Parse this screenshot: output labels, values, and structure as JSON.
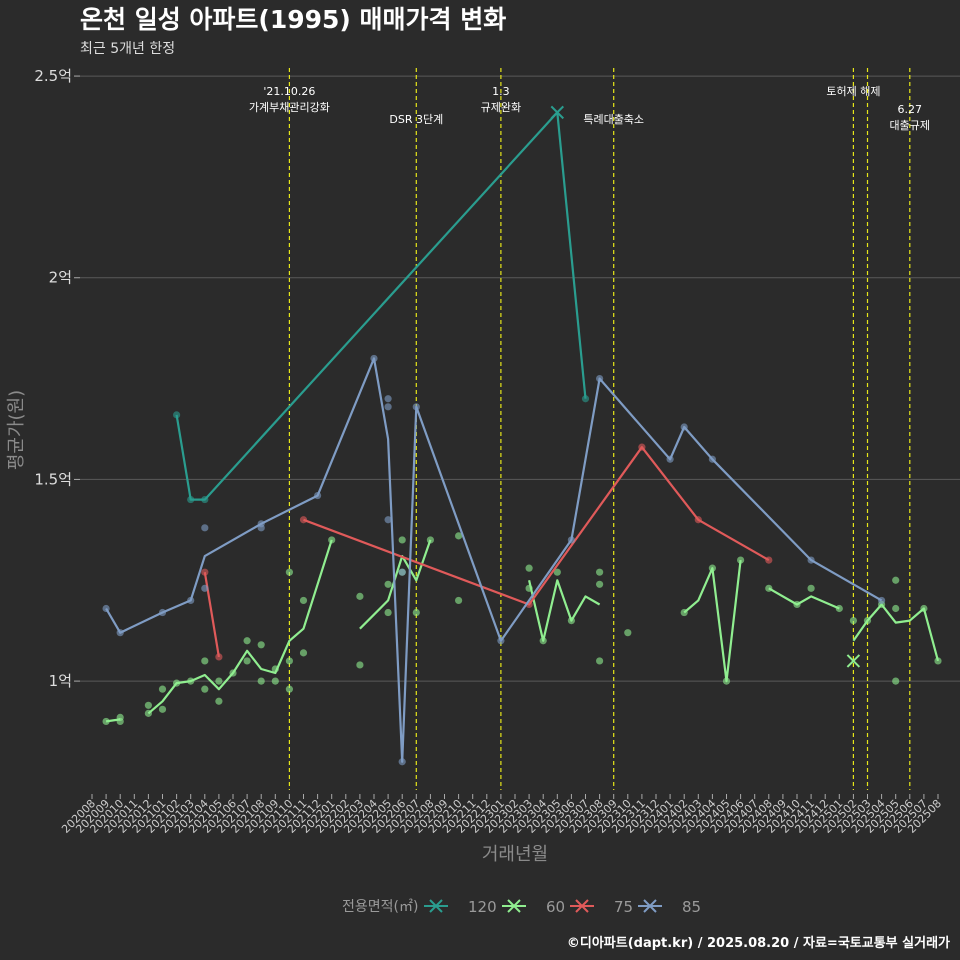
{
  "chart_data": {
    "type": "line",
    "title": "온천 일성 아파트(1995) 매매가격 변화",
    "subtitle": "최근 5개년 한정",
    "xlabel": "거래년월",
    "ylabel": "평균가(원)",
    "caption": "©디아파트(dapt.kr) / 2025.08.20 / 자료=국토교통부 실거래가",
    "x_start": "202008",
    "x_end": "202508",
    "ylim": [
      0.73,
      2.52
    ],
    "y_unit": "억",
    "yticks": [
      {
        "value": 1.0,
        "label": "1억"
      },
      {
        "value": 1.5,
        "label": "1.5억"
      },
      {
        "value": 2.0,
        "label": "2억"
      },
      {
        "value": 2.5,
        "label": "2.5억"
      }
    ],
    "xticks": [
      "202008",
      "202009",
      "202010",
      "202011",
      "202012",
      "202101",
      "202102",
      "202103",
      "202104",
      "202105",
      "202106",
      "202107",
      "202108",
      "202109",
      "202110",
      "202111",
      "202112",
      "202201",
      "202202",
      "202203",
      "202204",
      "202205",
      "202206",
      "202207",
      "202208",
      "202209",
      "202210",
      "202211",
      "202212",
      "202301",
      "202302",
      "202303",
      "202304",
      "202305",
      "202306",
      "202307",
      "202308",
      "202309",
      "202310",
      "202311",
      "202312",
      "202401",
      "202402",
      "202403",
      "202404",
      "202405",
      "202406",
      "202407",
      "202408",
      "202409",
      "202410",
      "202411",
      "202412",
      "202501",
      "202502",
      "202503",
      "202504",
      "202505",
      "202506",
      "202507",
      "202508"
    ],
    "grid": true,
    "legend": {
      "title": "전용면적(㎡)",
      "position": "bottom"
    },
    "events": [
      {
        "x": "202110",
        "lines": [
          "'21.10.26",
          "가계부채관리강화"
        ],
        "level": 1
      },
      {
        "x": "202207",
        "lines": [
          "DSR 3단계"
        ],
        "level": 2
      },
      {
        "x": "202301",
        "lines": [
          "1.3",
          "규제완화"
        ],
        "level": 1
      },
      {
        "x": "202309",
        "lines": [
          "특례대출축소"
        ],
        "level": 2
      },
      {
        "x": "202502",
        "lines": [
          "토허제 해제"
        ],
        "level": 1
      },
      {
        "x": "202503",
        "lines": [],
        "level": 1
      },
      {
        "x": "202506",
        "lines": [
          "6.27",
          "대출규제"
        ],
        "level": 3
      }
    ],
    "series": [
      {
        "name": "120",
        "color": "#2a9d8f",
        "line": [
          [
            "202102",
            1.66
          ],
          [
            "202103",
            1.45
          ],
          [
            "202104",
            1.45
          ],
          [
            "202305",
            2.41
          ],
          [
            "202307",
            1.7
          ]
        ],
        "points": [
          [
            "202102",
            1.66
          ],
          [
            "202103",
            1.45
          ],
          [
            "202104",
            1.45
          ],
          [
            "202307",
            1.7
          ]
        ],
        "crosses": [
          [
            "202305",
            2.41
          ]
        ]
      },
      {
        "name": "60",
        "color": "#90ee90",
        "line": [
          [
            "202009",
            0.9
          ],
          [
            "202010",
            0.905
          ],
          null,
          [
            "202012",
            0.92
          ],
          [
            "202101",
            0.95
          ],
          [
            "202102",
            0.995
          ],
          [
            "202103",
            1.0
          ],
          [
            "202104",
            1.015
          ],
          [
            "202105",
            0.98
          ],
          [
            "202106",
            1.02
          ],
          [
            "202107",
            1.075
          ],
          [
            "202108",
            1.03
          ],
          [
            "202109",
            1.02
          ],
          [
            "202110",
            1.1
          ],
          [
            "202111",
            1.13
          ],
          [
            "202201",
            1.35
          ],
          null,
          [
            "202203",
            1.13
          ],
          [
            "202205",
            1.2
          ],
          [
            "202206",
            1.31
          ],
          [
            "202207",
            1.25
          ],
          [
            "202208",
            1.35
          ],
          null,
          [
            "202303",
            1.25
          ],
          [
            "202304",
            1.1
          ],
          [
            "202305",
            1.25
          ],
          [
            "202306",
            1.15
          ],
          [
            "202307",
            1.21
          ],
          [
            "202308",
            1.19
          ],
          null,
          [
            "202402",
            1.17
          ],
          [
            "202403",
            1.2
          ],
          [
            "202404",
            1.28
          ],
          [
            "202405",
            1.0
          ],
          [
            "202406",
            1.3
          ],
          null,
          [
            "202408",
            1.23
          ],
          [
            "202410",
            1.19
          ],
          [
            "202411",
            1.21
          ],
          [
            "202501",
            1.18
          ],
          null,
          [
            "202502",
            1.1
          ],
          [
            "202503",
            1.15
          ],
          [
            "202504",
            1.19
          ],
          [
            "202505",
            1.145
          ],
          [
            "202506",
            1.15
          ],
          [
            "202507",
            1.18
          ],
          [
            "202508",
            1.05
          ]
        ],
        "points": [
          [
            "202009",
            0.9
          ],
          [
            "202010",
            0.9
          ],
          [
            "202010",
            0.91
          ],
          [
            "202012",
            0.92
          ],
          [
            "202012",
            0.94
          ],
          [
            "202101",
            0.93
          ],
          [
            "202101",
            0.98
          ],
          [
            "202102",
            0.995
          ],
          [
            "202103",
            1.0
          ],
          [
            "202104",
            0.98
          ],
          [
            "202104",
            1.05
          ],
          [
            "202105",
            0.95
          ],
          [
            "202105",
            1.0
          ],
          [
            "202106",
            1.02
          ],
          [
            "202107",
            1.05
          ],
          [
            "202107",
            1.1
          ],
          [
            "202108",
            1.0
          ],
          [
            "202108",
            1.09
          ],
          [
            "202109",
            1.0
          ],
          [
            "202109",
            1.03
          ],
          [
            "202110",
            0.98
          ],
          [
            "202110",
            1.05
          ],
          [
            "202110",
            1.27
          ],
          [
            "202111",
            1.07
          ],
          [
            "202111",
            1.2
          ],
          [
            "202201",
            1.35
          ],
          [
            "202203",
            1.04
          ],
          [
            "202203",
            1.21
          ],
          [
            "202205",
            1.17
          ],
          [
            "202205",
            1.24
          ],
          [
            "202206",
            1.35
          ],
          [
            "202206",
            1.27
          ],
          [
            "202207",
            1.17
          ],
          [
            "202208",
            1.35
          ],
          [
            "202210",
            1.36
          ],
          [
            "202210",
            1.2
          ],
          [
            "202303",
            1.23
          ],
          [
            "202303",
            1.28
          ],
          [
            "202304",
            1.1
          ],
          [
            "202305",
            1.27
          ],
          [
            "202306",
            1.15
          ],
          [
            "202308",
            1.27
          ],
          [
            "202308",
            1.24
          ],
          [
            "202308",
            1.05
          ],
          [
            "202310",
            1.12
          ],
          [
            "202402",
            1.17
          ],
          [
            "202404",
            1.28
          ],
          [
            "202405",
            1.0
          ],
          [
            "202406",
            1.3
          ],
          [
            "202408",
            1.23
          ],
          [
            "202410",
            1.19
          ],
          [
            "202411",
            1.23
          ],
          [
            "202501",
            1.18
          ],
          [
            "202502",
            1.15
          ],
          [
            "202503",
            1.15
          ],
          [
            "202504",
            1.19
          ],
          [
            "202505",
            1.25
          ],
          [
            "202505",
            1.18
          ],
          [
            "202505",
            1.0
          ],
          [
            "202507",
            1.18
          ],
          [
            "202508",
            1.05
          ]
        ],
        "crosses": [
          [
            "202502",
            1.05
          ]
        ]
      },
      {
        "name": "75",
        "color": "#e05a5a",
        "line": [
          [
            "202104",
            1.27
          ],
          [
            "202105",
            1.06
          ],
          null,
          [
            "202111",
            1.4
          ],
          [
            "202303",
            1.19
          ],
          [
            "202311",
            1.58
          ],
          [
            "202403",
            1.4
          ],
          [
            "202408",
            1.3
          ]
        ],
        "points": [
          [
            "202104",
            1.27
          ],
          [
            "202105",
            1.06
          ],
          [
            "202111",
            1.4
          ],
          [
            "202303",
            1.19
          ],
          [
            "202311",
            1.58
          ],
          [
            "202403",
            1.4
          ],
          [
            "202408",
            1.3
          ]
        ],
        "crosses": []
      },
      {
        "name": "85",
        "color": "#7f9cc4",
        "line": [
          [
            "202009",
            1.18
          ],
          [
            "202010",
            1.12
          ],
          [
            "202101",
            1.17
          ],
          [
            "202103",
            1.2
          ],
          [
            "202104",
            1.31
          ],
          [
            "202108",
            1.39
          ],
          [
            "202112",
            1.46
          ],
          [
            "202204",
            1.8
          ],
          [
            "202205",
            1.6
          ],
          [
            "202206",
            0.8
          ],
          [
            "202207",
            1.68
          ],
          [
            "202301",
            1.1
          ],
          [
            "202306",
            1.35
          ],
          [
            "202308",
            1.75
          ],
          [
            "202401",
            1.55
          ],
          [
            "202402",
            1.63
          ],
          [
            "202404",
            1.55
          ],
          [
            "202411",
            1.3
          ],
          [
            "202504",
            1.2
          ]
        ],
        "points": [
          [
            "202009",
            1.18
          ],
          [
            "202010",
            1.12
          ],
          [
            "202101",
            1.17
          ],
          [
            "202103",
            1.2
          ],
          [
            "202104",
            1.23
          ],
          [
            "202104",
            1.38
          ],
          [
            "202108",
            1.39
          ],
          [
            "202108",
            1.38
          ],
          [
            "202112",
            1.46
          ],
          [
            "202204",
            1.8
          ],
          [
            "202205",
            1.7
          ],
          [
            "202205",
            1.68
          ],
          [
            "202205",
            1.4
          ],
          [
            "202206",
            0.8
          ],
          [
            "202206",
            1.27
          ],
          [
            "202207",
            1.68
          ],
          [
            "202301",
            1.1
          ],
          [
            "202306",
            1.35
          ],
          [
            "202308",
            1.75
          ],
          [
            "202401",
            1.55
          ],
          [
            "202402",
            1.63
          ],
          [
            "202404",
            1.55
          ],
          [
            "202411",
            1.3
          ],
          [
            "202504",
            1.2
          ]
        ],
        "crosses": []
      }
    ]
  }
}
